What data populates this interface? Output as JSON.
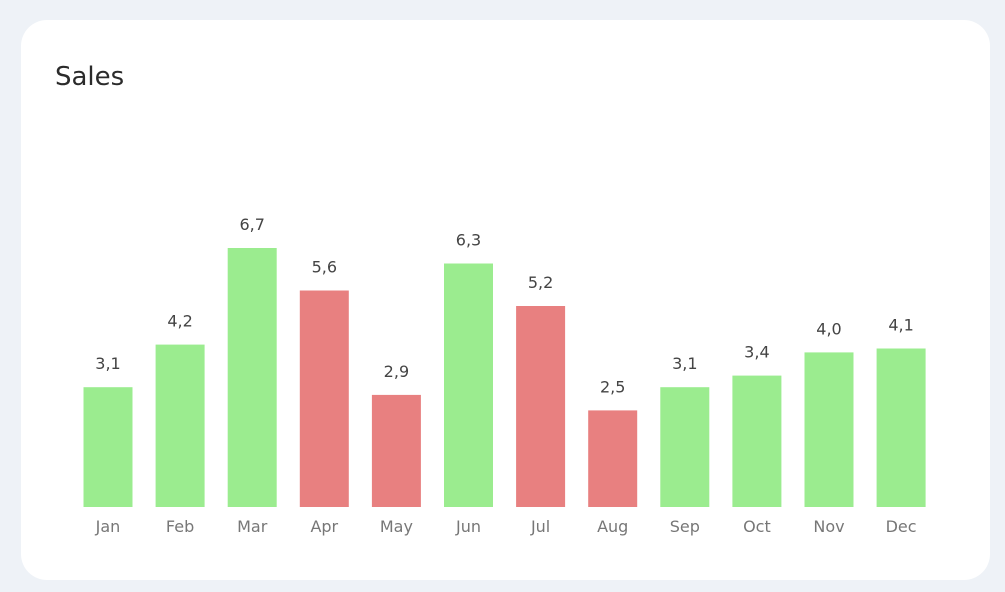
{
  "chart_data": {
    "type": "bar",
    "title": "Sales",
    "categories": [
      "Jan",
      "Feb",
      "Mar",
      "Apr",
      "May",
      "Jun",
      "Jul",
      "Aug",
      "Sep",
      "Oct",
      "Nov",
      "Dec"
    ],
    "values": [
      3.1,
      4.2,
      6.7,
      5.6,
      2.9,
      6.3,
      5.2,
      2.5,
      3.1,
      3.4,
      4.0,
      4.1
    ],
    "value_labels": [
      "3,1",
      "4,2",
      "6,7",
      "5,6",
      "2,9",
      "6,3",
      "5,2",
      "2,5",
      "3,1",
      "3,4",
      "4,0",
      "4,1"
    ],
    "bar_colors": [
      "#9bec8f",
      "#9bec8f",
      "#9bec8f",
      "#e88080",
      "#e88080",
      "#9bec8f",
      "#e88080",
      "#e88080",
      "#9bec8f",
      "#9bec8f",
      "#9bec8f",
      "#9bec8f"
    ],
    "ylim": [
      0,
      6.7
    ],
    "grid": false,
    "legend": "none",
    "xlabel": "",
    "ylabel": ""
  }
}
